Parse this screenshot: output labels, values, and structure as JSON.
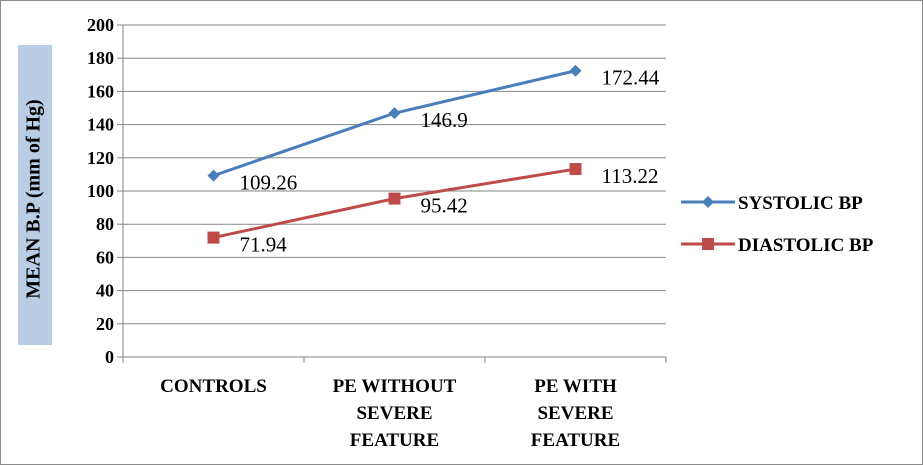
{
  "chart_data": {
    "type": "line",
    "categories": [
      [
        "CONTROLS"
      ],
      [
        "PE WITHOUT",
        "SEVERE",
        "FEATURE"
      ],
      [
        "PE WITH",
        "SEVERE",
        "FEATURE"
      ]
    ],
    "series": [
      {
        "name": "SYSTOLIC BP",
        "values": [
          109.26,
          146.9,
          172.44
        ],
        "labels": [
          "109.26",
          "146.9",
          "172.44"
        ],
        "color": "#4a7ebb",
        "marker": "diamond"
      },
      {
        "name": "DIASTOLIC BP",
        "values": [
          71.94,
          95.42,
          113.22
        ],
        "labels": [
          "71.94",
          "95.42",
          "113.22"
        ],
        "color": "#be4b48",
        "marker": "square"
      }
    ],
    "ylabel": "MEAN  B.P  (mm of Hg)",
    "ylabel_bg": "#b9cde5",
    "ylim": [
      0,
      200
    ],
    "yticks": [
      0,
      20,
      40,
      60,
      80,
      100,
      120,
      140,
      160,
      180,
      200
    ],
    "grid": true,
    "legend": "right"
  }
}
